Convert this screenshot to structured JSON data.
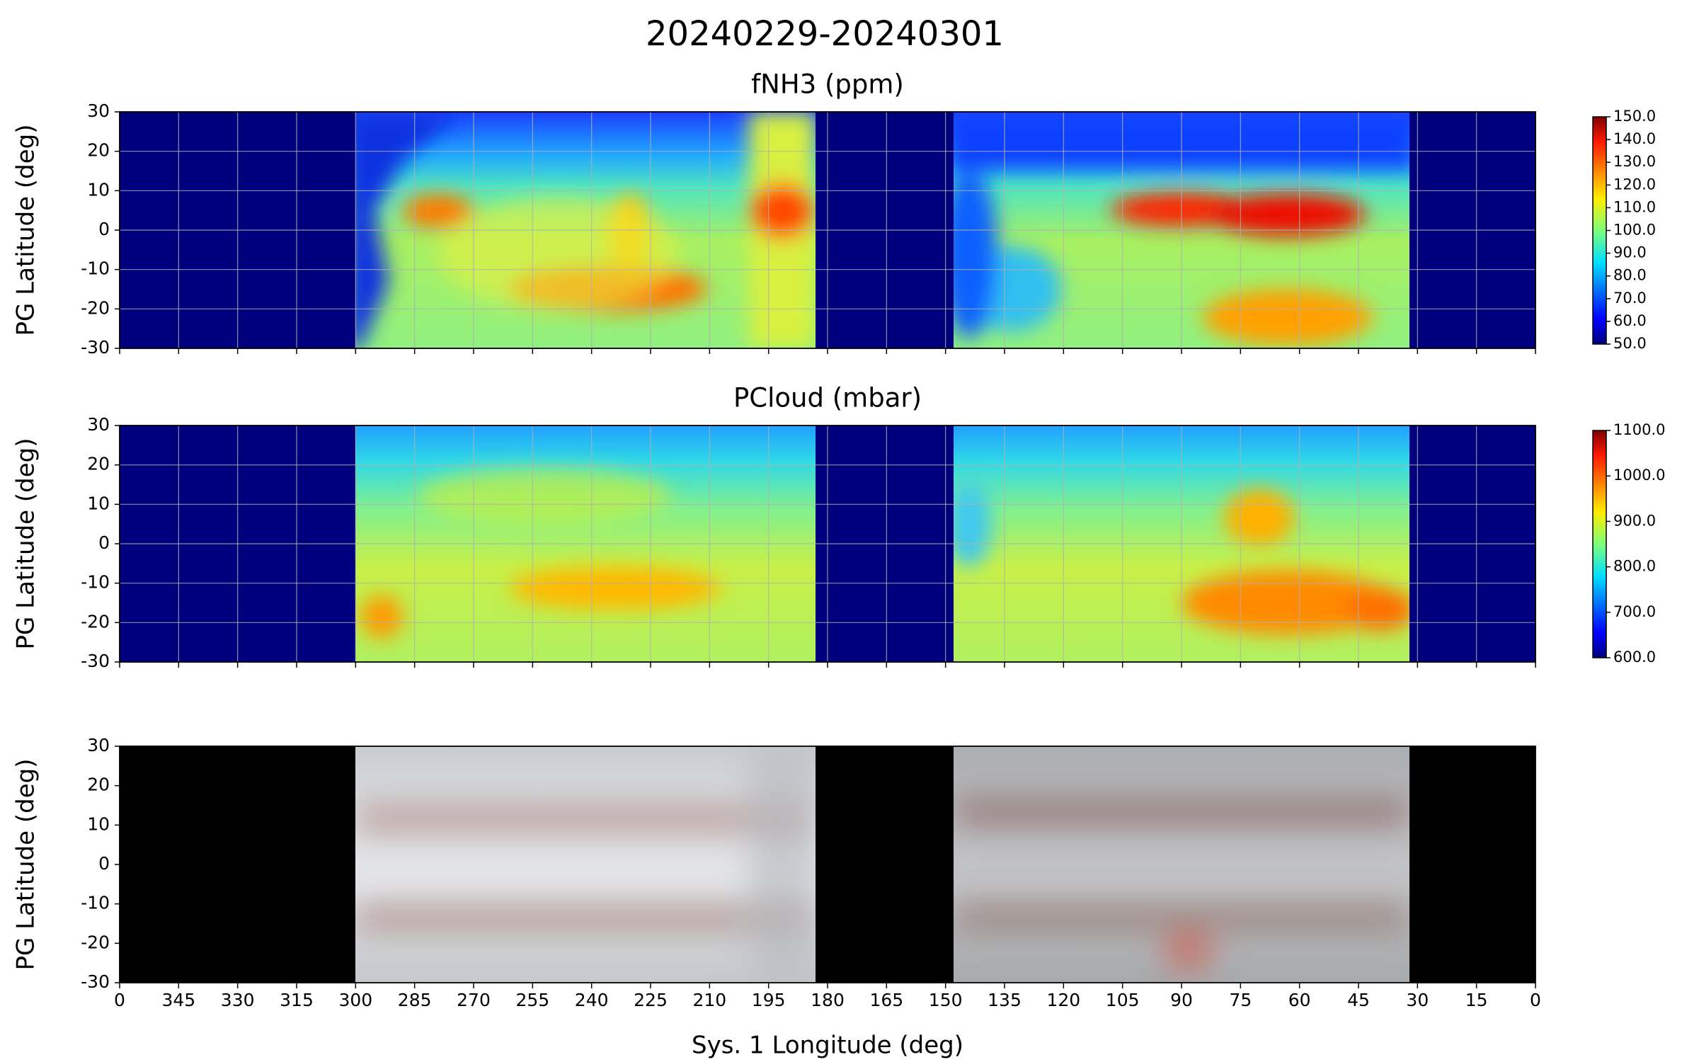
{
  "title": "20240229-20240301",
  "chart_data": [
    {
      "type": "heatmap",
      "title": "fNH3 (ppm)",
      "ylabel": "PG Latitude (deg)",
      "xlim": [
        360,
        0
      ],
      "ylim": [
        -30,
        30
      ],
      "yticks": [
        -30,
        -20,
        -10,
        0,
        10,
        20,
        30
      ],
      "grid": true,
      "colorbar": {
        "lim": [
          50,
          150
        ],
        "ticks": [
          {
            "value": 50,
            "label": "50.0"
          },
          {
            "value": 60,
            "label": "60.0"
          },
          {
            "value": 70,
            "label": "70.0"
          },
          {
            "value": 80,
            "label": "80.0"
          },
          {
            "value": 90,
            "label": "90.0"
          },
          {
            "value": 100,
            "label": "100.0"
          },
          {
            "value": 110,
            "label": "110.0"
          },
          {
            "value": 120,
            "label": "120.0"
          },
          {
            "value": 130,
            "label": "130.0"
          },
          {
            "value": 140,
            "label": "140.0"
          },
          {
            "value": 150,
            "label": "150.0"
          }
        ]
      }
    },
    {
      "type": "heatmap",
      "title": "PCloud (mbar)",
      "ylabel": "PG Latitude (deg)",
      "xlim": [
        360,
        0
      ],
      "ylim": [
        -30,
        30
      ],
      "yticks": [
        -30,
        -20,
        -10,
        0,
        10,
        20,
        30
      ],
      "grid": true,
      "colorbar": {
        "lim": [
          600,
          1100
        ],
        "ticks": [
          {
            "value": 600,
            "label": "600.0"
          },
          {
            "value": 700,
            "label": "700.0"
          },
          {
            "value": 800,
            "label": "800.0"
          },
          {
            "value": 900,
            "label": "900.0"
          },
          {
            "value": 1000,
            "label": "1000.0"
          },
          {
            "value": 1100,
            "label": "1100.0"
          }
        ]
      }
    },
    {
      "type": "image",
      "ylabel": "PG Latitude (deg)",
      "xlabel": "Sys. 1 Longitude (deg)",
      "xlim": [
        360,
        0
      ],
      "ylim": [
        -30,
        30
      ],
      "yticks": [
        -30,
        -20,
        -10,
        0,
        10,
        20,
        30
      ],
      "grid": false,
      "xticks": [
        {
          "value": 360,
          "label": "0"
        },
        345,
        330,
        315,
        300,
        285,
        270,
        255,
        240,
        225,
        210,
        195,
        180,
        165,
        150,
        135,
        120,
        105,
        90,
        75,
        60,
        45,
        30,
        15,
        0
      ]
    }
  ]
}
